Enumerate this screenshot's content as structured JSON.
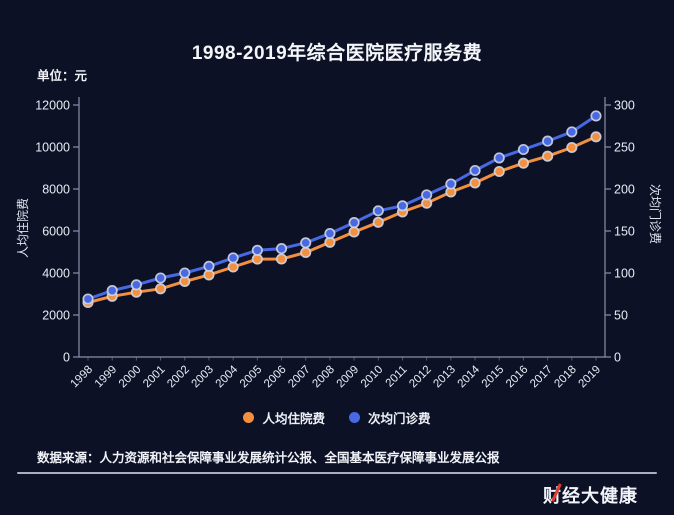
{
  "title": "1998-2019年综合医院医疗服务费",
  "unit_label": "单位：元",
  "source_note": "数据来源：人力资源和社会保障事业发展统计公报、全国基本医疗保障事业发展公报",
  "brand_logo": "财经大健康",
  "colors": {
    "background": "#0c1126",
    "inpatient_orange": "#f3903f",
    "outpatient_blue": "#4869e2",
    "axis_line": "#8b90a8",
    "tick_text": "#e9ecf4",
    "logo_slash_red": "#e23b31"
  },
  "legend": [
    {
      "label": "人均住院费",
      "color": "#f3903f"
    },
    {
      "label": "次均门诊费",
      "color": "#4869e2"
    }
  ],
  "chart_data": {
    "type": "line",
    "x": [
      "1998",
      "1999",
      "2000",
      "2001",
      "2002",
      "2003",
      "2004",
      "2005",
      "2006",
      "2007",
      "2008",
      "2009",
      "2010",
      "2011",
      "2012",
      "2013",
      "2014",
      "2015",
      "2016",
      "2017",
      "2018",
      "2019"
    ],
    "series": [
      {
        "name": "人均住院费",
        "axis": "left",
        "color": "#f3903f",
        "values": [
          2597,
          2891,
          3084,
          3246,
          3598,
          3911,
          4285,
          4662,
          4669,
          4974,
          5464,
          5952,
          6416,
          6910,
          7325,
          7859,
          8291,
          8833,
          9230,
          9563,
          9976,
          10484
        ]
      },
      {
        "name": "次均门诊费",
        "axis": "right",
        "color": "#4869e2",
        "values": [
          69,
          79,
          86,
          94,
          100,
          108,
          118,
          127,
          129,
          136,
          147,
          160,
          174,
          180,
          193,
          206,
          222,
          237,
          247,
          257,
          268,
          287
        ]
      }
    ],
    "left_axis": {
      "label": "人均住院费",
      "min": 0,
      "max": 12000,
      "tick_step": 2000,
      "tick_labels": [
        "0",
        "2000",
        "4000",
        "6000",
        "8000",
        "10000",
        "12000"
      ]
    },
    "right_axis": {
      "label": "次均门诊费",
      "min": 0,
      "max": 300,
      "tick_step": 50,
      "tick_labels": [
        "0",
        "50",
        "100",
        "150",
        "200",
        "250",
        "300"
      ]
    },
    "grid": false,
    "markers": true,
    "legend_position": "bottom",
    "x_label_rotation": -45
  }
}
